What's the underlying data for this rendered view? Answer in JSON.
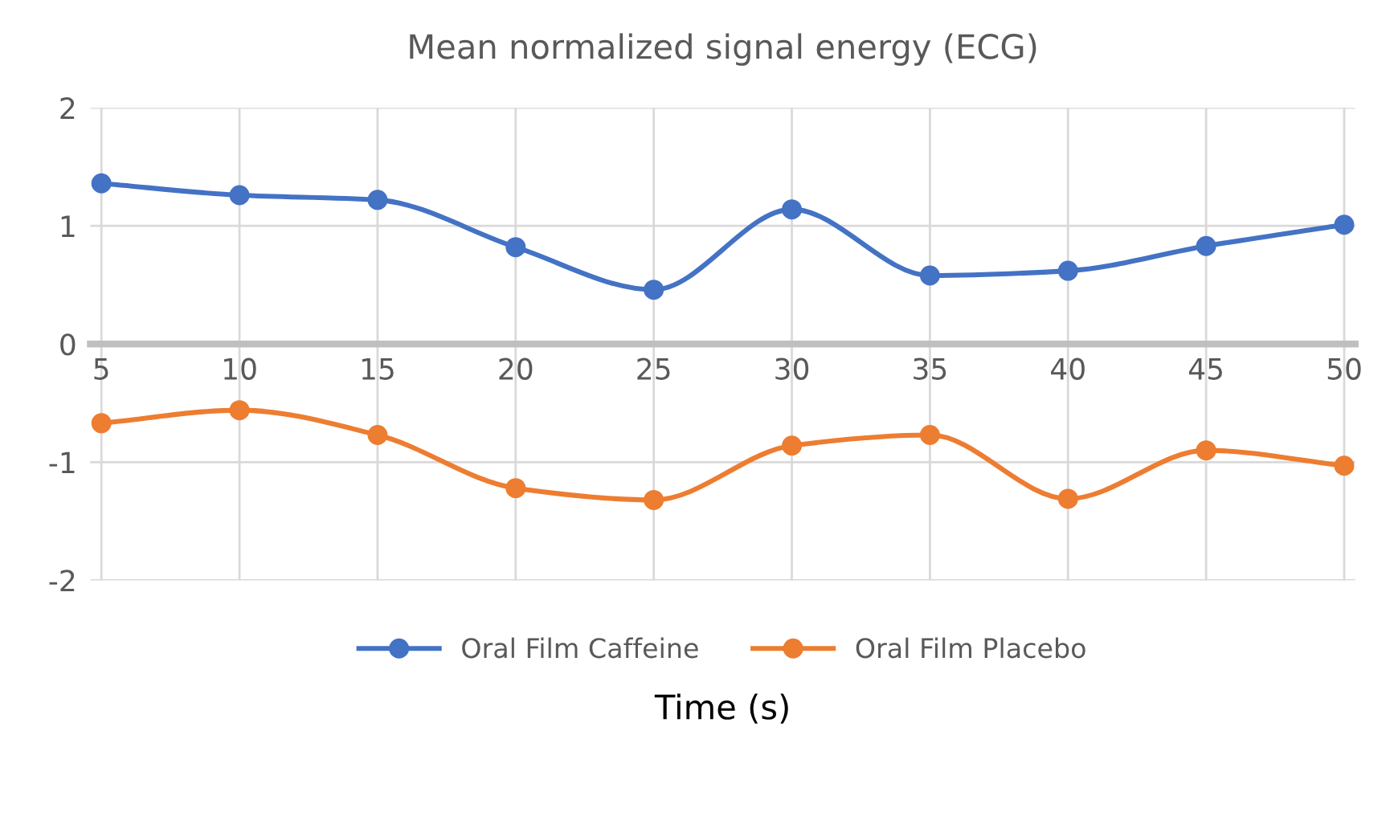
{
  "chart_data": {
    "type": "line",
    "title": "Mean normalized signal energy (ECG)",
    "xlabel": "Time (s)",
    "categories": [
      "5",
      "10",
      "15",
      "20",
      "25",
      "30",
      "35",
      "40",
      "45",
      "50"
    ],
    "series": [
      {
        "name": "Oral Film Caffeine",
        "color": "#4472c4",
        "values": [
          1.36,
          1.26,
          1.22,
          0.82,
          0.46,
          1.14,
          0.58,
          0.62,
          0.83,
          1.01
        ]
      },
      {
        "name": "Oral Film Placebo",
        "color": "#ed7d31",
        "values": [
          -0.67,
          -0.56,
          -0.77,
          -1.22,
          -1.32,
          -0.86,
          -0.77,
          -1.31,
          -0.9,
          -1.03
        ]
      }
    ],
    "ylim": [
      -2,
      2
    ],
    "yticks": [
      -2,
      -1,
      0,
      1,
      2
    ],
    "grid": true,
    "legend": "bottom",
    "marker": "circle",
    "line_style": "solid"
  }
}
